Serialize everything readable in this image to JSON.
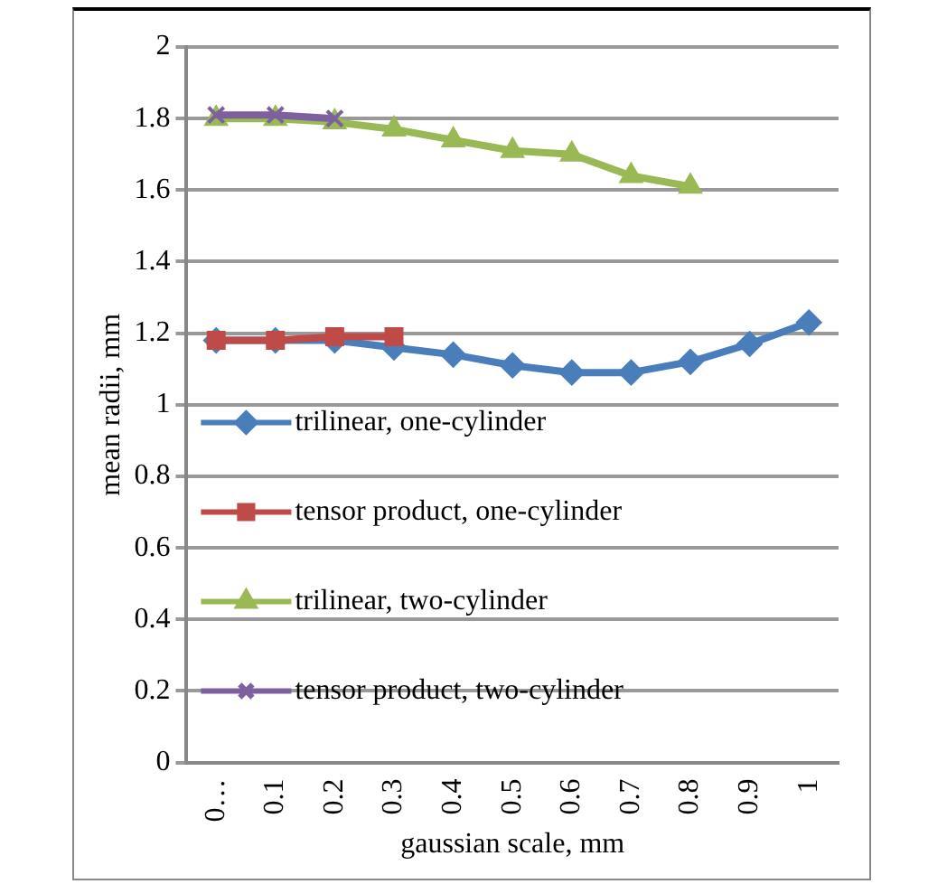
{
  "chart_data": {
    "type": "line",
    "xlabel": "gaussian scale, mm",
    "ylabel": "mean radii, mm",
    "categories": [
      "0…",
      "0.1",
      "0.2",
      "0.3",
      "0.4",
      "0.5",
      "0.6",
      "0.7",
      "0.8",
      "0.9",
      "1"
    ],
    "series": [
      {
        "name": "trilinear, one-cylinder",
        "color": "#4a7ebb",
        "marker": "diamond",
        "values": [
          1.18,
          1.18,
          1.18,
          1.16,
          1.14,
          1.11,
          1.09,
          1.09,
          1.12,
          1.17,
          1.23
        ]
      },
      {
        "name": "tensor product, one-cylinder",
        "color": "#be4b48",
        "marker": "square",
        "values": [
          1.18,
          1.18,
          1.19,
          1.19,
          null,
          null,
          null,
          null,
          null,
          null,
          null
        ]
      },
      {
        "name": "trilinear, two-cylinder",
        "color": "#98b954",
        "marker": "triangle",
        "values": [
          1.8,
          1.8,
          1.79,
          1.77,
          1.74,
          1.71,
          1.7,
          1.64,
          1.61,
          null,
          null
        ]
      },
      {
        "name": "tensor product, two-cylinder",
        "color": "#7d60a0",
        "marker": "cross",
        "values": [
          1.81,
          1.81,
          1.8,
          null,
          null,
          null,
          null,
          null,
          null,
          null,
          null
        ]
      }
    ],
    "ylim": [
      0,
      2
    ],
    "yticks": [
      0,
      0.2,
      0.4,
      0.6,
      0.8,
      1,
      1.2,
      1.4,
      1.6,
      1.8,
      2
    ],
    "grid": "y",
    "legend": "bottom left"
  }
}
